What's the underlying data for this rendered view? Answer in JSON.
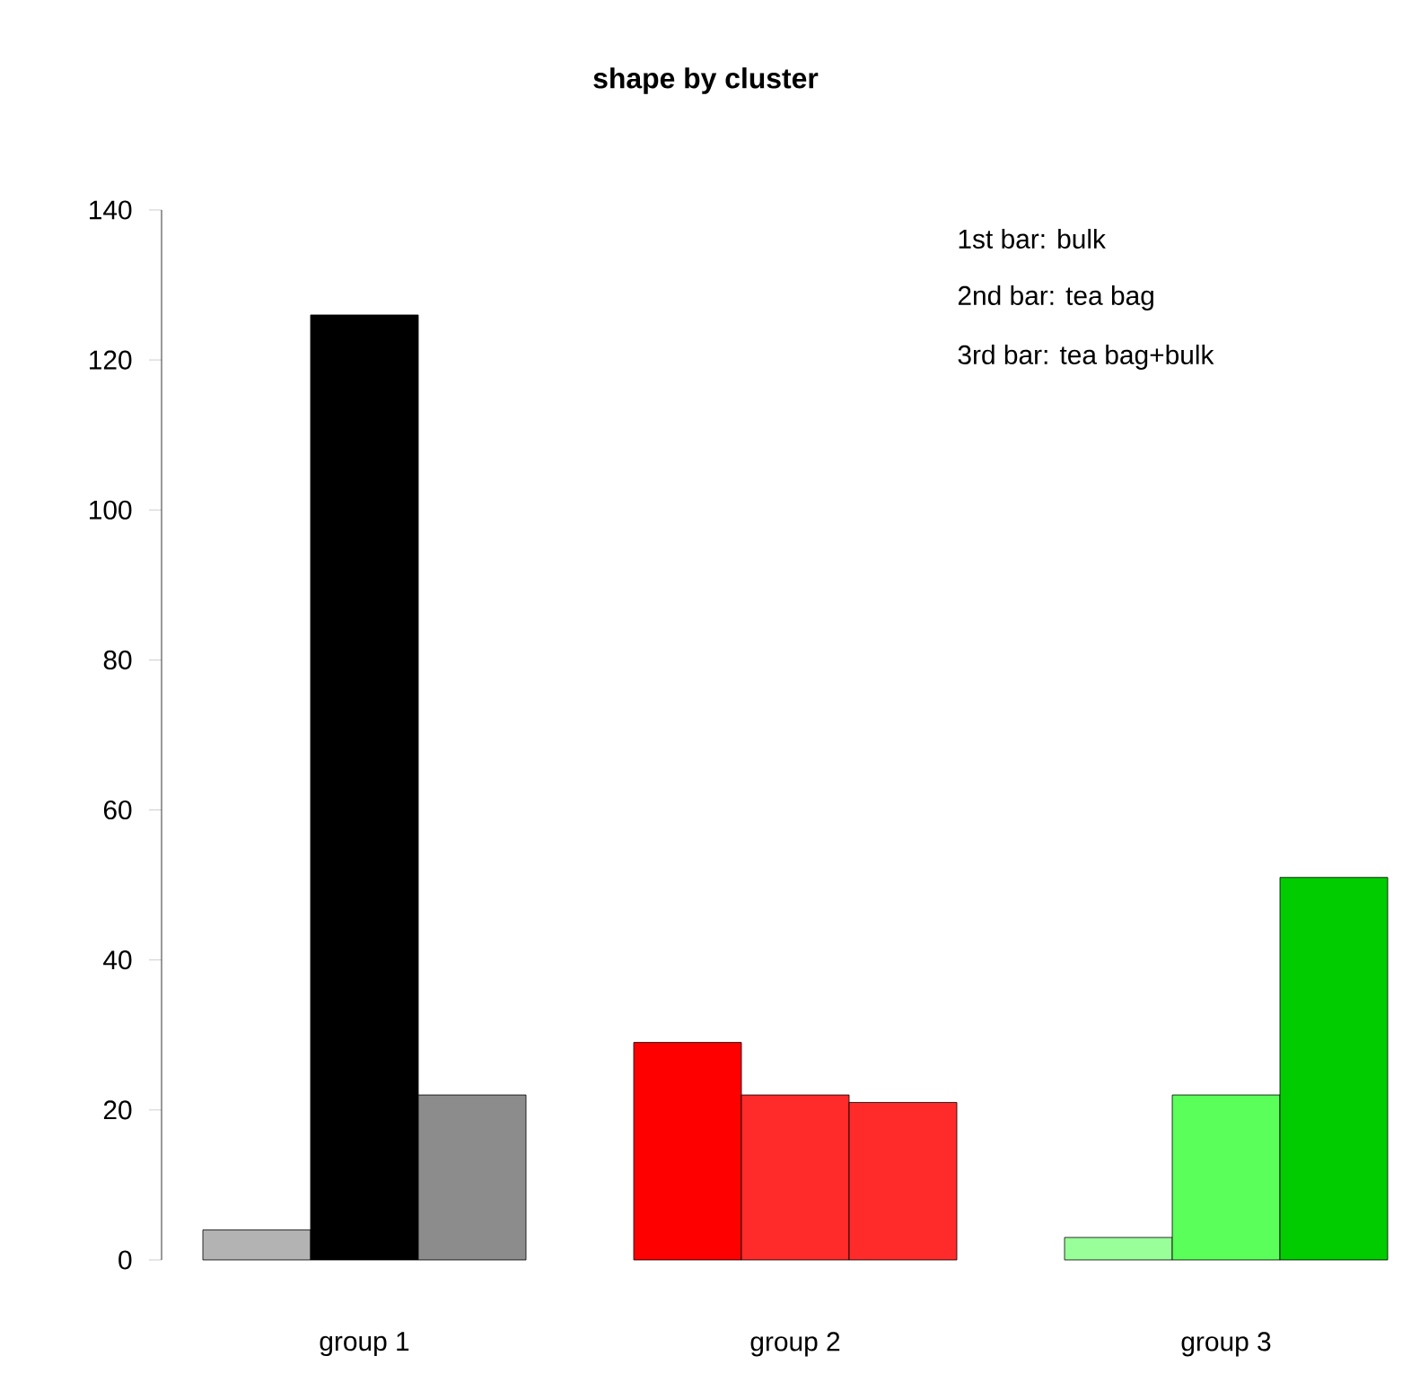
{
  "chart_data": {
    "type": "bar",
    "title": "shape by cluster",
    "categories": [
      "group 1",
      "group 2",
      "group 3"
    ],
    "series": [
      {
        "values": [
          4,
          29,
          3
        ],
        "colors": [
          "#b3b3b3",
          "#ff0000",
          "#99ff99"
        ]
      },
      {
        "values": [
          126,
          22,
          22
        ],
        "colors": [
          "#000000",
          "#ff2a2a",
          "#5aff5a"
        ]
      },
      {
        "values": [
          22,
          21,
          51
        ],
        "colors": [
          "#8c8c8c",
          "#ff2a2a",
          "#00cc00"
        ]
      }
    ],
    "ylim": [
      0,
      140
    ],
    "yticks": [
      0,
      20,
      40,
      60,
      80,
      100,
      120,
      140
    ],
    "annotations": [
      "1st bar: bulk",
      "2nd bar: tea bag",
      "3rd bar: tea bag+bulk"
    ]
  }
}
